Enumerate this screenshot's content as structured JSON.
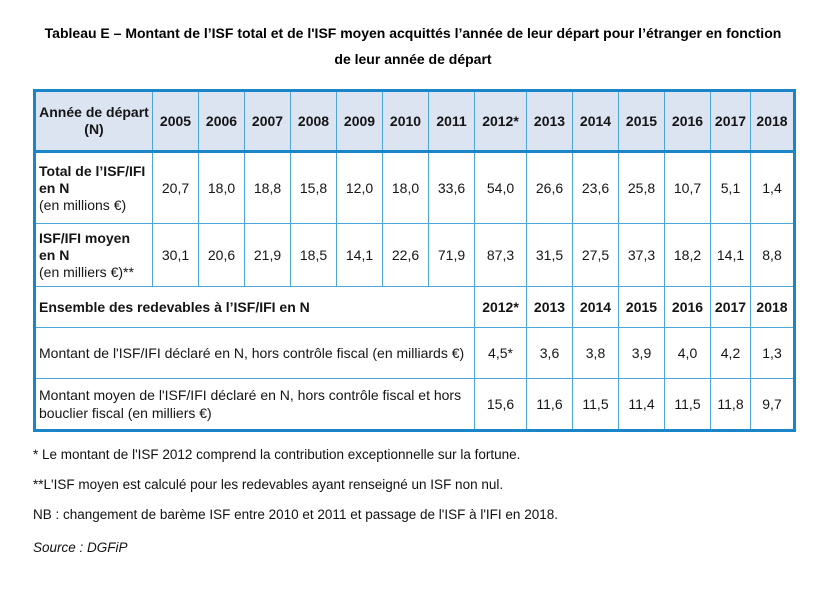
{
  "title": "Tableau E – Montant de l’ISF total et de l'ISF moyen acquittés l’année de leur départ pour l’étranger en fonction de leur année de départ",
  "table": {
    "header": {
      "label": "Année de départ (N)",
      "years": [
        "2005",
        "2006",
        "2007",
        "2008",
        "2009",
        "2010",
        "2011",
        "2012*",
        "2013",
        "2014",
        "2015",
        "2016",
        "2017",
        "2018"
      ]
    },
    "rows": [
      {
        "label_bold": "Total de l’ISF/IFI en N",
        "label_note": "(en millions €)",
        "values": [
          "20,7",
          "18,0",
          "18,8",
          "15,8",
          "12,0",
          "18,0",
          "33,6",
          "54,0",
          "26,6",
          "23,6",
          "25,8",
          "10,7",
          "5,1",
          "1,4"
        ]
      },
      {
        "label_bold": "ISF/IFI moyen en N",
        "label_note": "(en milliers €)**",
        "values": [
          "30,1",
          "20,6",
          "21,9",
          "18,5",
          "14,1",
          "22,6",
          "71,9",
          "87,3",
          "31,5",
          "27,5",
          "37,3",
          "18,2",
          "14,1",
          "8,8"
        ]
      }
    ],
    "section2": {
      "title": "Ensemble des redevables à l’ISF/IFI en N",
      "years": [
        "2012*",
        "2013",
        "2014",
        "2015",
        "2016",
        "2017",
        "2018"
      ],
      "rows": [
        {
          "label": "Montant de l'ISF/IFI déclaré en N, hors contrôle fiscal (en milliards €)",
          "values": [
            "4,5*",
            "3,6",
            "3,8",
            "3,9",
            "4,0",
            "4,2",
            "1,3"
          ]
        },
        {
          "label": "Montant moyen de l'ISF/IFI déclaré en N, hors contrôle fiscal et hors bouclier fiscal (en milliers €)",
          "values": [
            "15,6",
            "11,6",
            "11,5",
            "11,4",
            "11,5",
            "11,8",
            "9,7"
          ]
        }
      ]
    }
  },
  "footnotes": [
    "*  Le montant de l'ISF 2012 comprend la contribution exceptionnelle sur la fortune.",
    "**L'ISF moyen est calculé pour les redevables ayant renseigné un ISF non nul.",
    "NB : changement de barème ISF entre 2010 et 2011 et passage de l'ISF à l'IFI en 2018."
  ],
  "source": "Source : DGFiP",
  "colors": {
    "border_thick": "#1b86c7",
    "border_thin": "#4da6d9",
    "header_bg": "#dce4f1",
    "text": "#151515"
  }
}
